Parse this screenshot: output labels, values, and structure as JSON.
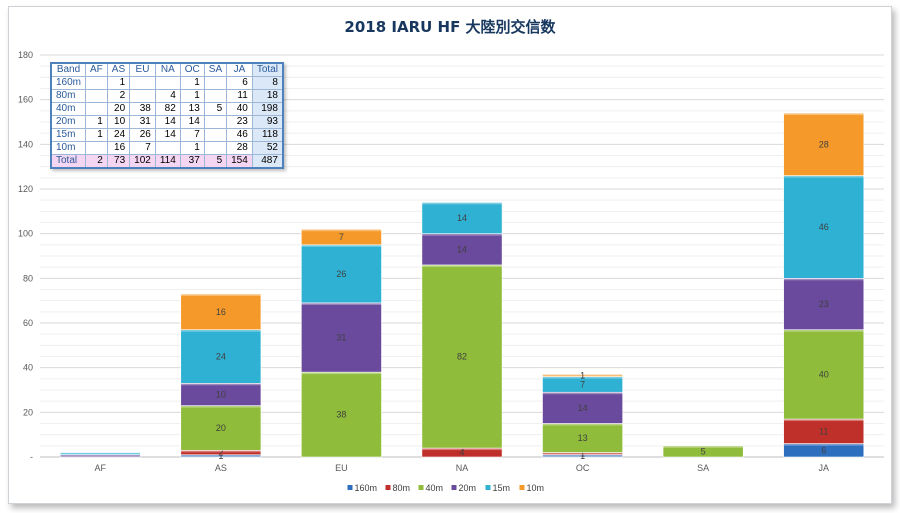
{
  "chart_data": {
    "type": "bar",
    "stacked": true,
    "title": "2018 IARU HF 大陸別交信数",
    "categories": [
      "AF",
      "AS",
      "EU",
      "NA",
      "OC",
      "SA",
      "JA"
    ],
    "series": [
      {
        "name": "160m",
        "color": "#2e6ebf",
        "values": [
          0,
          1,
          0,
          0,
          1,
          0,
          6
        ]
      },
      {
        "name": "80m",
        "color": "#c0302a",
        "values": [
          0,
          2,
          0,
          4,
          1,
          0,
          11
        ]
      },
      {
        "name": "40m",
        "color": "#8fbc3a",
        "values": [
          0,
          20,
          38,
          82,
          13,
          5,
          40
        ]
      },
      {
        "name": "20m",
        "color": "#6a4a9c",
        "values": [
          1,
          10,
          31,
          14,
          14,
          0,
          23
        ]
      },
      {
        "name": "15m",
        "color": "#2fb1d3",
        "values": [
          1,
          24,
          26,
          14,
          7,
          0,
          46
        ]
      },
      {
        "name": "10m",
        "color": "#f59a2a",
        "values": [
          0,
          16,
          7,
          0,
          1,
          0,
          28
        ]
      }
    ],
    "segment_labels": [
      [
        "",
        "",
        "",
        "",
        "",
        ""
      ],
      [
        "1",
        "2",
        "20",
        "10",
        "24",
        "16"
      ],
      [
        "",
        "",
        "38",
        "31",
        "26",
        "7"
      ],
      [
        "",
        "4",
        "82",
        "14",
        "14",
        ""
      ],
      [
        "1",
        "1",
        "13",
        "14",
        "7",
        "1"
      ],
      [
        "",
        "",
        "5",
        "",
        "",
        ""
      ],
      [
        "6",
        "11",
        "40",
        "23",
        "46",
        "28"
      ]
    ],
    "ylim": [
      0,
      180
    ],
    "yticks": [
      0,
      20,
      40,
      60,
      80,
      100,
      120,
      140,
      160,
      180
    ],
    "ytick_labels": [
      "-",
      "20",
      "40",
      "60",
      "80",
      "100",
      "120",
      "140",
      "160",
      "180"
    ],
    "grid": true,
    "legend_position": "bottom"
  },
  "table": {
    "headers": [
      "Band",
      "AF",
      "AS",
      "EU",
      "NA",
      "OC",
      "SA",
      "JA",
      "Total"
    ],
    "rows": [
      [
        "160m",
        "",
        "1",
        "",
        "",
        "1",
        "",
        "6",
        "8"
      ],
      [
        "80m",
        "",
        "2",
        "",
        "4",
        "1",
        "",
        "11",
        "18"
      ],
      [
        "40m",
        "",
        "20",
        "38",
        "82",
        "13",
        "5",
        "40",
        "198"
      ],
      [
        "20m",
        "1",
        "10",
        "31",
        "14",
        "14",
        "",
        "23",
        "93"
      ],
      [
        "15m",
        "1",
        "24",
        "26",
        "14",
        "7",
        "",
        "46",
        "118"
      ],
      [
        "10m",
        "",
        "16",
        "7",
        "",
        "1",
        "",
        "28",
        "52"
      ]
    ],
    "total_row": [
      "Total",
      "2",
      "73",
      "102",
      "114",
      "37",
      "5",
      "154",
      "487"
    ]
  }
}
